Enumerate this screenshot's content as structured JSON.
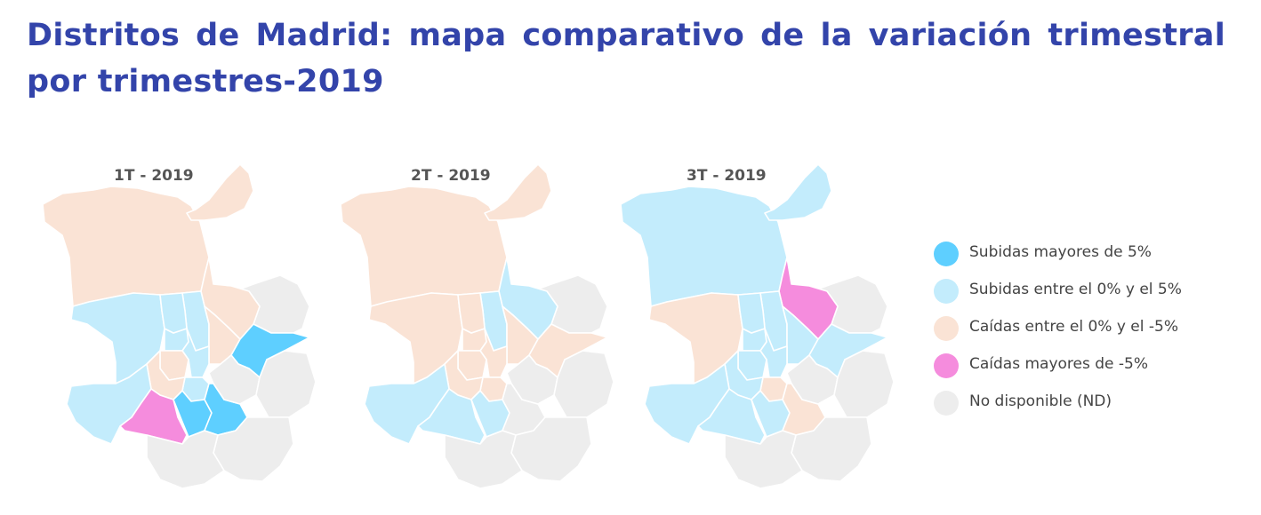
{
  "title": "Distritos de Madrid: mapa comparativo de la variación trimestral por trimestres-2019",
  "colors": {
    "subidas_mayores_5": "#5ecfff",
    "subidas_0_5": "#c3ecfc",
    "caidas_0_5": "#fae3d5",
    "caidas_mayores_5": "#f58cdd",
    "nd": "#ededed"
  },
  "legend": [
    {
      "key": "subidas_mayores_5",
      "label": "Subidas mayores de 5%"
    },
    {
      "key": "subidas_0_5",
      "label": "Subidas entre el 0% y el 5%"
    },
    {
      "key": "caidas_0_5",
      "label": "Caídas entre el 0% y el -5%"
    },
    {
      "key": "caidas_mayores_5",
      "label": "Caídas mayores de -5%"
    },
    {
      "key": "nd",
      "label": "No disponible (ND)"
    }
  ],
  "maps": [
    {
      "label": "1T - 2019",
      "districts": {
        "fuencarral": "caidas_0_5",
        "barajas": "caidas_0_5",
        "hortaleza": "caidas_0_5",
        "moncloa": "subidas_0_5",
        "chamberi": "subidas_0_5",
        "chamartin": "subidas_0_5",
        "ciudad_lineal": "caidas_0_5",
        "salamanca": "subidas_0_5",
        "centro": "caidas_0_5",
        "retiro": "subidas_0_5",
        "arganzuela": "caidas_0_5",
        "san_blas": "subidas_mayores_5",
        "latina": "subidas_0_5",
        "carabanchel": "caidas_mayores_5",
        "usera": "subidas_mayores_5",
        "puente_vallecas": "subidas_mayores_5",
        "moratalaz": "nd",
        "vicalvaro": "nd",
        "villa_vallecas": "nd",
        "villaverde": "nd",
        "tetuan": "subidas_0_5"
      }
    },
    {
      "label": "2T - 2019",
      "districts": {
        "fuencarral": "caidas_0_5",
        "barajas": "caidas_0_5",
        "hortaleza": "subidas_0_5",
        "moncloa": "caidas_0_5",
        "chamberi": "caidas_0_5",
        "chamartin": "subidas_0_5",
        "ciudad_lineal": "caidas_0_5",
        "salamanca": "caidas_0_5",
        "centro": "caidas_0_5",
        "retiro": "caidas_0_5",
        "arganzuela": "caidas_0_5",
        "san_blas": "caidas_0_5",
        "latina": "subidas_0_5",
        "carabanchel": "subidas_0_5",
        "usera": "subidas_0_5",
        "puente_vallecas": "nd",
        "moratalaz": "nd",
        "vicalvaro": "nd",
        "villa_vallecas": "nd",
        "villaverde": "nd",
        "tetuan": "caidas_0_5"
      }
    },
    {
      "label": "3T - 2019",
      "districts": {
        "fuencarral": "subidas_0_5",
        "barajas": "subidas_0_5",
        "hortaleza": "caidas_mayores_5",
        "moncloa": "caidas_0_5",
        "chamberi": "subidas_0_5",
        "chamartin": "subidas_0_5",
        "ciudad_lineal": "subidas_0_5",
        "salamanca": "subidas_0_5",
        "centro": "subidas_0_5",
        "retiro": "caidas_0_5",
        "arganzuela": "subidas_0_5",
        "san_blas": "subidas_0_5",
        "latina": "subidas_0_5",
        "carabanchel": "subidas_0_5",
        "usera": "subidas_0_5",
        "puente_vallecas": "caidas_0_5",
        "moratalaz": "nd",
        "vicalvaro": "nd",
        "villa_vallecas": "nd",
        "villaverde": "nd",
        "tetuan": "subidas_0_5"
      }
    }
  ]
}
